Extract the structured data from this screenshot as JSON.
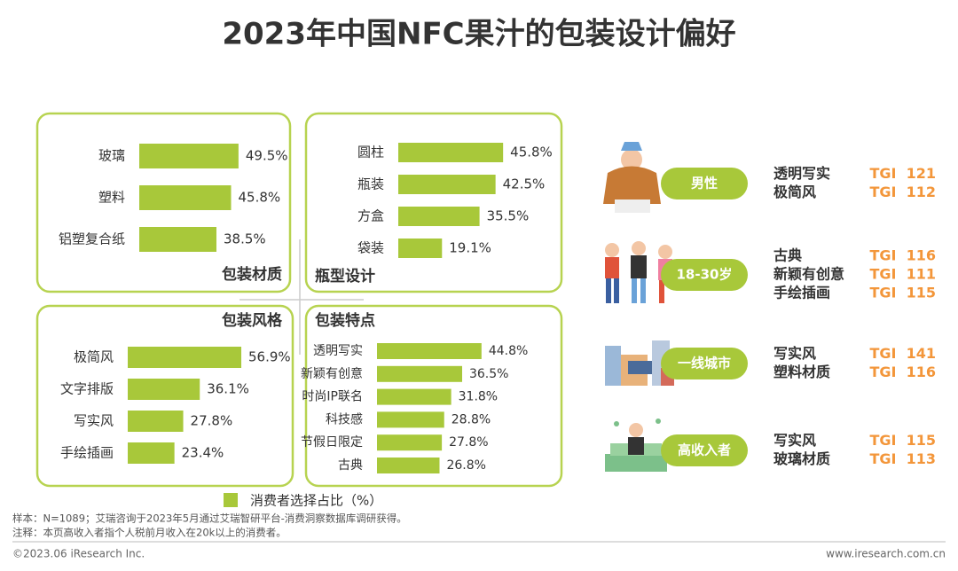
{
  "title": "2023年中国NFC果汁的包装设计偏好",
  "chart_data": [
    {
      "type": "bar",
      "title": "包装材质",
      "categories": [
        "玻璃",
        "塑料",
        "铝塑复合纸"
      ],
      "values": [
        49.5,
        45.8,
        38.5
      ],
      "value_labels": [
        "49.5%",
        "45.8%",
        "38.5%"
      ],
      "color": "#a8c83a"
    },
    {
      "type": "bar",
      "title": "瓶型设计",
      "categories": [
        "圆柱",
        "瓶装",
        "方盒",
        "袋装"
      ],
      "values": [
        45.8,
        42.5,
        35.5,
        19.1
      ],
      "value_labels": [
        "45.8%",
        "42.5%",
        "35.5%",
        "19.1%"
      ],
      "color": "#a8c83a"
    },
    {
      "type": "bar",
      "title": "包装风格",
      "categories": [
        "极简风",
        "文字排版",
        "写实风",
        "手绘插画"
      ],
      "values": [
        56.9,
        36.1,
        27.8,
        23.4
      ],
      "value_labels": [
        "56.9%",
        "36.1%",
        "27.8%",
        "23.4%"
      ],
      "color": "#a8c83a"
    },
    {
      "type": "bar",
      "title": "包装特点",
      "categories": [
        "透明写实",
        "新颖有创意",
        "时尚IP联名",
        "科技感",
        "节假日限定",
        "古典"
      ],
      "values": [
        44.8,
        36.5,
        31.8,
        28.8,
        27.8,
        26.8
      ],
      "value_labels": [
        "44.8%",
        "36.5%",
        "31.8%",
        "28.8%",
        "27.8%",
        "26.8%"
      ],
      "color": "#a8c83a"
    }
  ],
  "legend": {
    "label": "消费者选择占比（%）",
    "color": "#a8c83a"
  },
  "segments": [
    {
      "label": "男性",
      "items": [
        {
          "name": "透明写实",
          "tgi": "TGI  121"
        },
        {
          "name": "极简风",
          "tgi": "TGI  112"
        }
      ]
    },
    {
      "label": "18-30岁",
      "items": [
        {
          "name": "古典",
          "tgi": "TGI  116"
        },
        {
          "name": "新颖有创意",
          "tgi": "TGI  111"
        },
        {
          "name": "手绘插画",
          "tgi": "TGI  115"
        }
      ]
    },
    {
      "label": "一线城市",
      "items": [
        {
          "name": "写实风",
          "tgi": "TGI  141"
        },
        {
          "name": "塑料材质",
          "tgi": "TGI  116"
        }
      ]
    },
    {
      "label": "高收入者",
      "items": [
        {
          "name": "写实风",
          "tgi": "TGI  115"
        },
        {
          "name": "玻璃材质",
          "tgi": "TGI  113"
        }
      ]
    }
  ],
  "footer": {
    "sample": "样本：N=1089；艾瑞咨询于2023年5月通过艾瑞智研平台-消费洞察数据库调研获得。",
    "note": "注释：本页高收入者指个人税前月收入在20k以上的消费者。",
    "copyright": "©2023.06 iResearch Inc.",
    "website": "www.iresearch.com.cn"
  }
}
